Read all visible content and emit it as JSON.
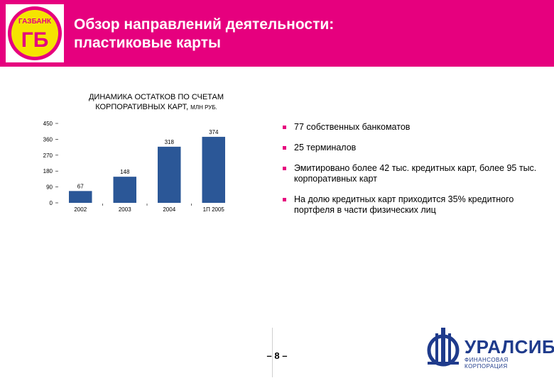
{
  "header": {
    "logo_text_top": "ГАЗБАНК",
    "logo_text_mark": "ГБ",
    "title_line1": "Обзор направлений деятельности:",
    "title_line2": "пластиковые карты",
    "bg_color": "#e6007e"
  },
  "chart_title": {
    "line1": "ДИНАМИКА ОСТАТКОВ ПО СЧЕТАМ",
    "line2_main": "КОРПОРАТИВНЫХ КАРТ,",
    "line2_unit": "МЛН РУБ."
  },
  "chart_data": {
    "type": "bar",
    "categories": [
      "2002",
      "2003",
      "2004",
      "1П 2005"
    ],
    "values": [
      67,
      148,
      318,
      374
    ],
    "data_labels": [
      "67",
      "148",
      "318",
      "374"
    ],
    "y_ticks": [
      "0",
      "90",
      "180",
      "270",
      "360",
      "450"
    ],
    "ylim": [
      0,
      450
    ],
    "bar_color": "#2b5797",
    "title": "ДИНАМИКА ОСТАТКОВ ПО СЧЕТАМ КОРПОРАТИВНЫХ КАРТ, МЛН РУБ.",
    "xlabel": "",
    "ylabel": ""
  },
  "bullets": [
    "77 собственных банкоматов",
    "25 терминалов",
    "Эмитировано более 42 тыс. кредитных карт, более 95 тыс. корпоративных карт",
    "На долю кредитных карт приходится 35% кредитного портфеля в части физических лиц"
  ],
  "page_number": "– 8 –",
  "brand": {
    "name": "УРАЛСИБ",
    "subtitle": "ФИНАНСОВАЯ КОРПОРАЦИЯ",
    "color": "#1f3b8c"
  }
}
